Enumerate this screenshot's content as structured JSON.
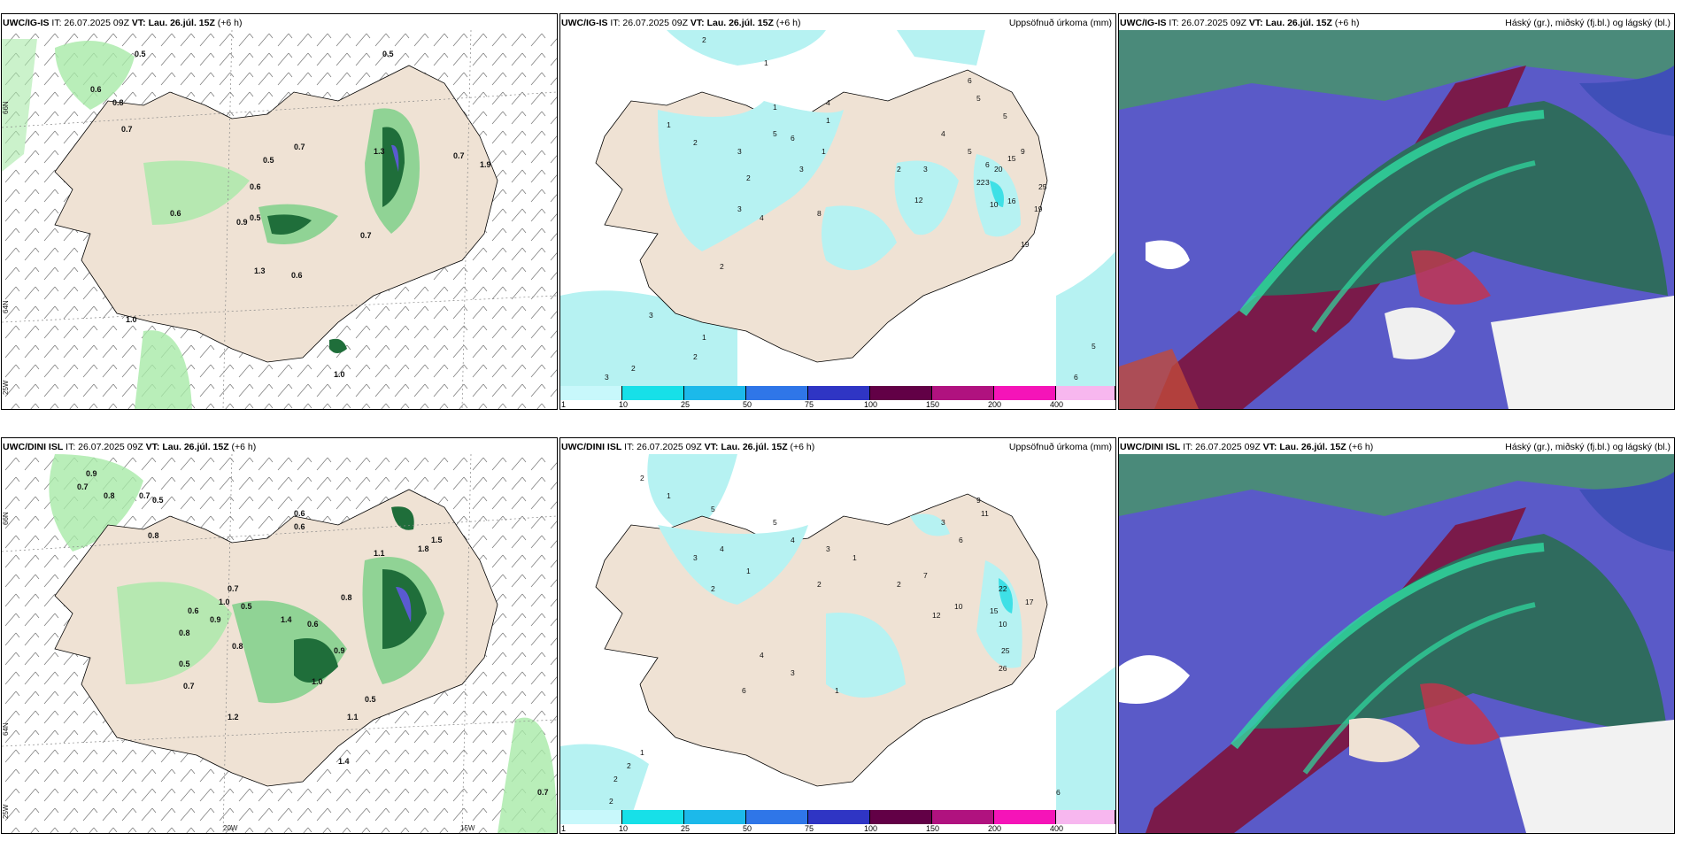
{
  "panels": {
    "top_left": {
      "model": "UWC/IG-IS",
      "it": "IT: 26.07.2025 09Z",
      "vt_label": "VT:",
      "vt_value": "Lau. 26.júl. 15Z",
      "lead": "(+6 h)",
      "title_right": ""
    },
    "top_mid": {
      "model": "UWC/IG-IS",
      "it": "IT: 26.07.2025 09Z",
      "vt_label": "VT:",
      "vt_value": "Lau. 26.júl. 15Z",
      "lead": "(+6 h)",
      "title_right": "Uppsöfnuð úrkoma (mm)"
    },
    "top_right": {
      "model": "UWC/IG-IS",
      "it": "IT: 26.07.2025 09Z",
      "vt_label": "VT:",
      "vt_value": "Lau. 26.júl. 15Z",
      "lead": "(+6 h)",
      "title_right": "Háský (gr.), miðský (fj.bl.) og lágský (bl.)"
    },
    "bot_left": {
      "model": "UWC/DINI ISL",
      "it": "IT: 26.07.2025 09Z",
      "vt_label": "VT:",
      "vt_value": "Lau. 26.júl. 15Z",
      "lead": "(+6 h)",
      "title_right": ""
    },
    "bot_mid": {
      "model": "UWC/DINI ISL",
      "it": "IT: 26.07.2025 09Z",
      "vt_label": "VT:",
      "vt_value": "Lau. 26.júl. 15Z",
      "lead": "(+6 h)",
      "title_right": "Uppsöfnuð úrkoma (mm)"
    },
    "bot_right": {
      "model": "UWC/DINI ISL",
      "it": "IT: 26.07.2025 09Z",
      "vt_label": "VT:",
      "vt_value": "Lau. 26.júl. 15Z",
      "lead": "(+6 h)",
      "title_right": "Háský (gr.), miðský (fj.bl.) og lágský (bl.)"
    }
  },
  "axes": {
    "lon_labels": [
      "20W",
      "15W"
    ],
    "lat_labels": [
      "66N",
      "64N",
      "25W"
    ]
  },
  "colorbar": {
    "labels": [
      "1",
      "10",
      "25",
      "50",
      "75",
      "100",
      "150",
      "200",
      "400"
    ],
    "colors": [
      "#c8f8fb",
      "#17e0e8",
      "#1cb9ea",
      "#2f76e8",
      "#2f35c4",
      "#620046",
      "#b0127f",
      "#f514b8",
      "#f7b7ef"
    ]
  },
  "colors": {
    "land": "#efe2d4",
    "precip_light": "#b6f2f2",
    "green_light": "#a8eaa8",
    "green_dark": "#145c2c",
    "cloud_high": "#3f8f78",
    "cloud_mid": "#7a1a4a",
    "cloud_low": "#4a4ab8"
  },
  "values": {
    "top_left": [
      "0.5",
      "0.6",
      "0.7",
      "0.8",
      "0.9",
      "1.0",
      "1.3",
      "0.5",
      "0.6",
      "0.7",
      "0.5",
      "0.5",
      "0.7",
      "0.6",
      "1.3",
      "1.9",
      "0.6",
      "0.7",
      "1.0"
    ],
    "top_mid": [
      "2",
      "1",
      "1",
      "2",
      "3",
      "2",
      "1",
      "3",
      "4",
      "2",
      "5",
      "6",
      "4",
      "3",
      "1",
      "6",
      "5",
      "5",
      "4",
      "3",
      "5",
      "6",
      "2",
      "3",
      "9",
      "15",
      "22",
      "20",
      "16",
      "25",
      "19",
      "12",
      "10",
      "8",
      "19",
      "3",
      "2",
      "1",
      "2",
      "3",
      "5",
      "1",
      "6"
    ],
    "bot_left": [
      "0.9",
      "0.7",
      "0.8",
      "0.6",
      "0.7",
      "0.5",
      "0.8",
      "1.8",
      "1.5",
      "0.6",
      "1.0",
      "0.5",
      "0.7",
      "0.8",
      "1.4",
      "0.9",
      "0.6",
      "0.5",
      "1.1",
      "0.8",
      "0.6",
      "0.9",
      "1.0",
      "1.4",
      "0.7",
      "0.8",
      "0.5",
      "1.2",
      "1.1",
      "0.7"
    ],
    "bot_mid": [
      "2",
      "1",
      "5",
      "4",
      "3",
      "2",
      "1",
      "5",
      "4",
      "3",
      "2",
      "1",
      "6",
      "7",
      "3",
      "11",
      "9",
      "2",
      "22",
      "17",
      "15",
      "10",
      "25",
      "26",
      "12",
      "10",
      "6",
      "4",
      "3",
      "1",
      "2",
      "2",
      "2",
      "1",
      "6"
    ]
  }
}
